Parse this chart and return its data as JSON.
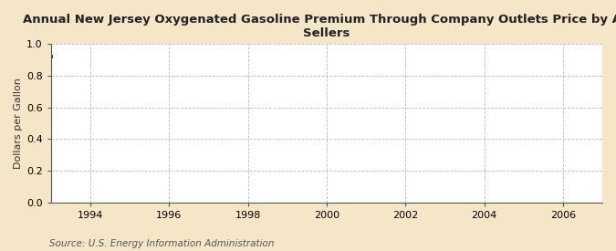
{
  "title": "Annual New Jersey Oxygenated Gasoline Premium Through Company Outlets Price by All Sellers",
  "ylabel": "Dollars per Gallon",
  "source": "Source: U.S. Energy Information Administration",
  "background_color": "#f5e6c8",
  "plot_background_color": "#ffffff",
  "data_x": [
    1993.0
  ],
  "data_y": [
    0.924
  ],
  "data_color": "#cc0000",
  "xlim": [
    1993.0,
    2007.0
  ],
  "ylim": [
    0.0,
    1.0
  ],
  "xticks": [
    1994,
    1996,
    1998,
    2000,
    2002,
    2004,
    2006
  ],
  "yticks": [
    0.0,
    0.2,
    0.4,
    0.6,
    0.8,
    1.0
  ],
  "grid_color": "#bbbbbb",
  "title_fontsize": 9.5,
  "axis_label_fontsize": 8,
  "tick_fontsize": 8,
  "source_fontsize": 7.5
}
